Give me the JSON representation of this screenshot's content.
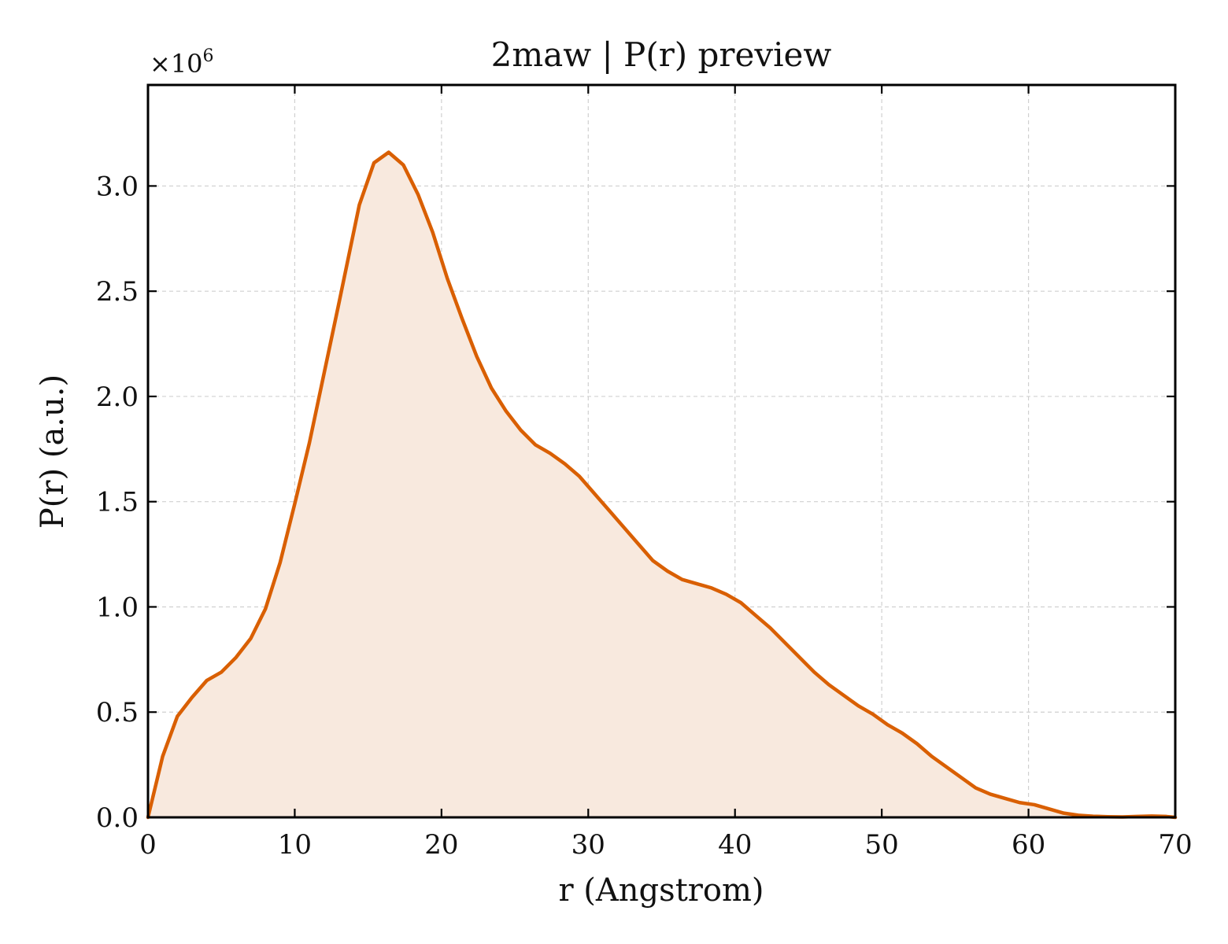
{
  "chart_data": {
    "type": "area",
    "title": "2maw | P(r) preview",
    "xlabel": "r (Angstrom)",
    "ylabel": "P(r) (a.u.)",
    "y_multiplier_label": "×10",
    "y_multiplier_exponent": "6",
    "xlim": [
      0,
      70
    ],
    "ylim": [
      0,
      3.48
    ],
    "xticks": [
      0,
      10,
      20,
      30,
      40,
      50,
      60,
      70
    ],
    "xtick_labels": [
      "0",
      "10",
      "20",
      "30",
      "40",
      "50",
      "60",
      "70"
    ],
    "yticks": [
      0,
      0.5,
      1.0,
      1.5,
      2.0,
      2.5,
      3.0
    ],
    "ytick_labels": [
      "0.0",
      "0.5",
      "1.0",
      "1.5",
      "2.0",
      "2.5",
      "3.0"
    ],
    "grid": true,
    "line_color": "#d95f02",
    "fill_color": "#f8e9de",
    "series": [
      {
        "x": [
          0,
          1,
          2,
          3,
          4,
          5,
          6,
          7,
          8,
          9,
          10,
          11,
          12,
          13,
          14.4,
          15.4,
          16.4,
          17.4,
          18.4,
          19.4,
          20.4,
          21.4,
          22.4,
          23.4,
          24.4,
          25.4,
          26.4,
          27.4,
          28.4,
          29.4,
          30.4,
          31.4,
          32.4,
          33.4,
          34.4,
          35.4,
          36.4,
          37.4,
          38.4,
          39.4,
          40.4,
          41.4,
          42.4,
          43.4,
          44.4,
          45.4,
          46.4,
          47.4,
          48.4,
          49.4,
          50.4,
          51.4,
          52.4,
          53.4,
          54.4,
          55.4,
          56.4,
          57.4,
          58.4,
          59.4,
          60.4,
          61.4,
          62.4,
          63.4,
          64.4,
          65.4,
          66.4,
          67.4,
          68.4,
          69.4,
          70
        ],
        "y": [
          0.0,
          0.29,
          0.48,
          0.57,
          0.65,
          0.69,
          0.76,
          0.85,
          0.99,
          1.21,
          1.49,
          1.78,
          2.11,
          2.44,
          2.91,
          3.11,
          3.16,
          3.1,
          2.96,
          2.78,
          2.56,
          2.37,
          2.19,
          2.04,
          1.93,
          1.84,
          1.77,
          1.73,
          1.68,
          1.62,
          1.54,
          1.46,
          1.38,
          1.3,
          1.22,
          1.17,
          1.13,
          1.11,
          1.09,
          1.06,
          1.02,
          0.96,
          0.9,
          0.83,
          0.76,
          0.69,
          0.63,
          0.58,
          0.53,
          0.49,
          0.44,
          0.4,
          0.35,
          0.29,
          0.24,
          0.19,
          0.14,
          0.11,
          0.09,
          0.07,
          0.06,
          0.04,
          0.02,
          0.01,
          0.005,
          0.003,
          0.002,
          0.004,
          0.006,
          0.004,
          0.0
        ]
      }
    ]
  }
}
